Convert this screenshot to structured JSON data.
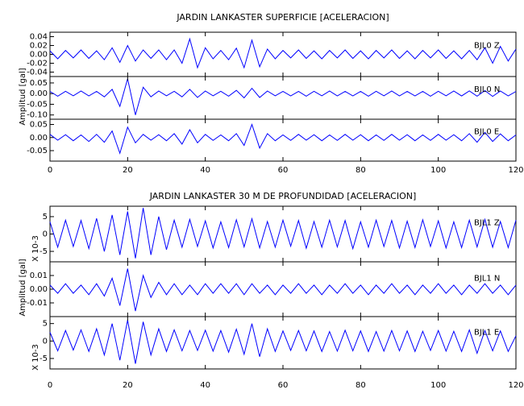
{
  "chart_data": [
    {
      "type": "line",
      "title": "JARDIN LANKASTER SUPERFICIE [ACELERACION]",
      "ylabel": "Amplitud [gal]",
      "x": [
        0,
        2,
        4,
        6,
        8,
        10,
        12,
        14,
        16,
        18,
        20,
        22,
        24,
        26,
        28,
        30,
        32,
        34,
        36,
        38,
        40,
        42,
        44,
        46,
        48,
        50,
        52,
        54,
        56,
        58,
        60,
        62,
        64,
        66,
        68,
        70,
        72,
        74,
        76,
        78,
        80,
        82,
        84,
        86,
        88,
        90,
        92,
        94,
        96,
        98,
        100,
        102,
        104,
        106,
        108,
        110,
        112,
        114,
        116,
        118,
        120
      ],
      "xlim": [
        0,
        120
      ],
      "xticks": [
        0,
        20,
        40,
        60,
        80,
        100,
        120
      ],
      "panels": [
        {
          "name": "BJL0 Z",
          "color": "#0000ff",
          "ylim": [
            -0.05,
            0.05
          ],
          "yticks": [
            0.04,
            0.02,
            {
              "value": 0,
              "label": "0.00"
            },
            -0.02,
            -0.04
          ],
          "values": [
            0.008,
            -0.01,
            0.009,
            -0.008,
            0.01,
            -0.009,
            0.008,
            -0.012,
            0.015,
            -0.018,
            0.02,
            -0.015,
            0.01,
            -0.009,
            0.01,
            -0.012,
            0.01,
            -0.02,
            0.035,
            -0.03,
            0.015,
            -0.01,
            0.009,
            -0.012,
            0.014,
            -0.03,
            0.032,
            -0.028,
            0.012,
            -0.01,
            0.009,
            -0.008,
            0.01,
            -0.009,
            0.008,
            -0.01,
            0.009,
            -0.008,
            0.01,
            -0.009,
            0.008,
            -0.01,
            0.009,
            -0.008,
            0.01,
            -0.009,
            0.008,
            -0.01,
            0.009,
            -0.008,
            0.01,
            -0.009,
            0.008,
            -0.01,
            0.009,
            -0.012,
            0.015,
            -0.02,
            0.018,
            -0.015,
            0.012
          ]
        },
        {
          "name": "BJL0 N",
          "color": "#0000ff",
          "ylim": [
            -0.12,
            0.08
          ],
          "yticks": [
            0.05,
            {
              "value": 0,
              "label": "0.00"
            },
            -0.05,
            {
              "value": -0.1,
              "label": "-0.10"
            }
          ],
          "values": [
            0.01,
            -0.012,
            0.011,
            -0.01,
            0.012,
            -0.011,
            0.01,
            -0.015,
            0.02,
            -0.06,
            0.07,
            -0.1,
            0.03,
            -0.015,
            0.012,
            -0.01,
            0.011,
            -0.015,
            0.02,
            -0.018,
            0.012,
            -0.01,
            0.011,
            -0.012,
            0.015,
            -0.02,
            0.025,
            -0.018,
            0.012,
            -0.01,
            0.01,
            -0.011,
            0.01,
            -0.012,
            0.011,
            -0.01,
            0.012,
            -0.011,
            0.01,
            -0.011,
            0.01,
            -0.012,
            0.011,
            -0.01,
            0.012,
            -0.011,
            0.01,
            -0.011,
            0.01,
            -0.012,
            0.011,
            -0.01,
            0.012,
            -0.011,
            0.013,
            -0.012,
            0.014,
            -0.013,
            0.012,
            -0.011,
            0.01
          ]
        },
        {
          "name": "BJL0 E",
          "color": "#0000ff",
          "ylim": [
            -0.09,
            0.07
          ],
          "yticks": [
            0.05,
            {
              "value": 0,
              "label": "0.00"
            },
            -0.05
          ],
          "values": [
            0.012,
            -0.01,
            0.011,
            -0.012,
            0.01,
            -0.015,
            0.012,
            -0.018,
            0.025,
            -0.06,
            0.04,
            -0.02,
            0.012,
            -0.01,
            0.011,
            -0.012,
            0.015,
            -0.025,
            0.03,
            -0.02,
            0.012,
            -0.011,
            0.01,
            -0.012,
            0.015,
            -0.03,
            0.05,
            -0.04,
            0.015,
            -0.012,
            0.01,
            -0.011,
            0.012,
            -0.01,
            0.011,
            -0.012,
            0.01,
            -0.011,
            0.012,
            -0.01,
            0.011,
            -0.012,
            0.01,
            -0.011,
            0.012,
            -0.01,
            0.011,
            -0.012,
            0.01,
            -0.011,
            0.012,
            -0.01,
            0.011,
            -0.012,
            0.015,
            -0.018,
            0.02,
            -0.015,
            0.014,
            -0.012,
            0.01
          ]
        }
      ]
    },
    {
      "type": "line",
      "title": "JARDIN LANKASTER 30 M DE PROFUNDIDAD [ACELERACION]",
      "ylabel": "Amplitud [gal]",
      "x": [
        0,
        2,
        4,
        6,
        8,
        10,
        12,
        14,
        16,
        18,
        20,
        22,
        24,
        26,
        28,
        30,
        32,
        34,
        36,
        38,
        40,
        42,
        44,
        46,
        48,
        50,
        52,
        54,
        56,
        58,
        60,
        62,
        64,
        66,
        68,
        70,
        72,
        74,
        76,
        78,
        80,
        82,
        84,
        86,
        88,
        90,
        92,
        94,
        96,
        98,
        100,
        102,
        104,
        106,
        108,
        110,
        112,
        114,
        116,
        118,
        120
      ],
      "xlim": [
        0,
        120
      ],
      "xticks": [
        0,
        20,
        40,
        60,
        80,
        100,
        120
      ],
      "panels": [
        {
          "name": "BJL1 Z",
          "color": "#0000ff",
          "unit_label": "X 10-3",
          "ylim": [
            -8,
            8
          ],
          "yticks": [
            5,
            0,
            -5
          ],
          "values": [
            3.5,
            -3.8,
            4.0,
            -3.6,
            3.9,
            -4.2,
            4.5,
            -5.0,
            5.5,
            -6.0,
            6.5,
            -7.0,
            7.5,
            -6.0,
            5.0,
            -4.5,
            4.0,
            -3.8,
            4.2,
            -3.6,
            3.8,
            -4.0,
            3.5,
            -3.9,
            4.1,
            -3.7,
            4.4,
            -4.0,
            3.6,
            -3.8,
            4.0,
            -3.5,
            3.9,
            -4.1,
            3.6,
            -3.8,
            4.0,
            -3.7,
            3.9,
            -4.2,
            3.5,
            -3.8,
            4.0,
            -3.6,
            3.9,
            -4.0,
            3.7,
            -3.9,
            4.1,
            -3.6,
            3.8,
            -4.0,
            3.5,
            -3.9,
            4.0,
            -3.7,
            4.2,
            -3.8,
            3.6,
            -3.9,
            4.0
          ]
        },
        {
          "name": "BJL1 N",
          "color": "#0000ff",
          "ylim": [
            -0.02,
            0.02
          ],
          "yticks": [
            0.01,
            {
              "value": 0,
              "label": "0.00"
            },
            -0.01
          ],
          "values": [
            0.003,
            -0.003,
            0.004,
            -0.003,
            0.003,
            -0.004,
            0.004,
            -0.005,
            0.008,
            -0.012,
            0.015,
            -0.016,
            0.01,
            -0.006,
            0.005,
            -0.004,
            0.004,
            -0.004,
            0.003,
            -0.004,
            0.004,
            -0.003,
            0.004,
            -0.003,
            0.004,
            -0.004,
            0.004,
            -0.003,
            0.003,
            -0.004,
            0.003,
            -0.003,
            0.004,
            -0.003,
            0.003,
            -0.004,
            0.003,
            -0.003,
            0.004,
            -0.003,
            0.003,
            -0.004,
            0.003,
            -0.003,
            0.004,
            -0.003,
            0.003,
            -0.004,
            0.003,
            -0.003,
            0.004,
            -0.003,
            0.003,
            -0.004,
            0.003,
            -0.003,
            0.004,
            -0.003,
            0.003,
            -0.004,
            0.003
          ]
        },
        {
          "name": "BJL1 E",
          "color": "#0000ff",
          "unit_label": "X 10-3",
          "ylim": [
            -8,
            7
          ],
          "yticks": [
            5,
            0,
            -5
          ],
          "values": [
            2.5,
            -2.8,
            3.0,
            -2.6,
            3.2,
            -3.0,
            3.5,
            -4.0,
            5.0,
            -5.5,
            6.0,
            -6.5,
            5.5,
            -4.0,
            3.5,
            -3.0,
            3.2,
            -2.8,
            3.0,
            -2.7,
            3.1,
            -2.9,
            3.0,
            -3.2,
            3.4,
            -3.8,
            5.0,
            -4.5,
            3.5,
            -3.0,
            2.9,
            -2.7,
            3.0,
            -2.8,
            2.9,
            -3.0,
            2.7,
            -2.9,
            3.1,
            -2.8,
            2.9,
            -3.0,
            2.7,
            -2.9,
            3.0,
            -2.8,
            2.9,
            -3.0,
            2.8,
            -2.7,
            3.0,
            -2.9,
            2.8,
            -3.0,
            3.2,
            -3.5,
            3.0,
            -2.8,
            2.9,
            -3.0,
            1.5
          ]
        }
      ]
    }
  ]
}
